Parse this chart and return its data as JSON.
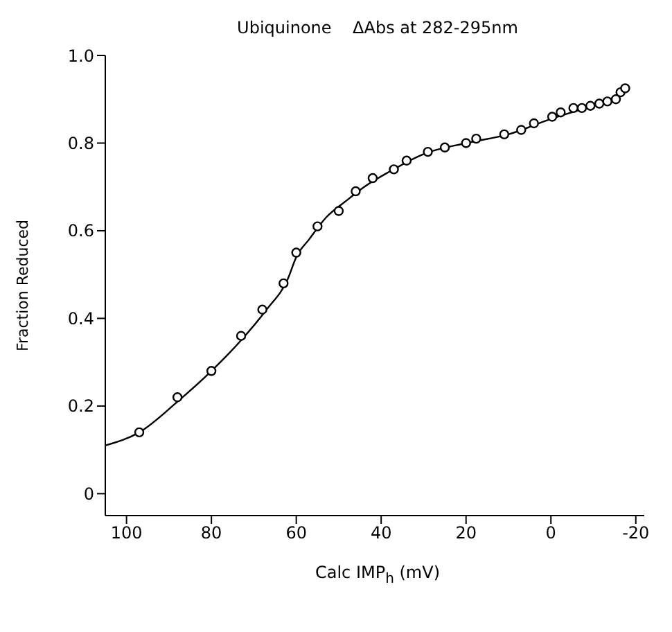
{
  "chart_data": {
    "type": "scatter",
    "title": "Ubiquinone    ΔAbs at 282-295nm",
    "xlabel": "Calc IMP$_{h}$ (mV)",
    "ylabel": "Fraction Reduced",
    "xlim": [
      105,
      -22
    ],
    "xticks": [
      100,
      80,
      60,
      40,
      20,
      0,
      -20
    ],
    "ylim": [
      -0.05,
      1.0
    ],
    "yticks": [
      0,
      {
        "value": 0.2,
        "label": "0.2"
      },
      {
        "value": 0.4,
        "label": "0.4"
      },
      {
        "value": 0.6,
        "label": "0.6"
      },
      {
        "value": 0.8,
        "label": "0.8"
      },
      {
        "value": 1.0,
        "label": "1.0"
      }
    ],
    "marker": "circle",
    "line_style": "solid",
    "series": [
      {
        "color": "#000000",
        "x": [
          97,
          88,
          80,
          73,
          68,
          63,
          60,
          55,
          50,
          46,
          42,
          37,
          34,
          29,
          25,
          20,
          17.6,
          11,
          7,
          4,
          -0.3,
          -2.3,
          -5.3,
          -7.3,
          -9.3,
          -11.4,
          -13.3,
          -15.3,
          -16.4,
          -17.5
        ],
        "values": [
          0.14,
          0.22,
          0.28,
          0.36,
          0.42,
          0.48,
          0.55,
          0.61,
          0.645,
          0.69,
          0.72,
          0.74,
          0.76,
          0.78,
          0.79,
          0.8,
          0.81,
          0.82,
          0.83,
          0.845,
          0.86,
          0.87,
          0.88,
          0.88,
          0.885,
          0.89,
          0.895,
          0.9,
          0.916,
          0.925
        ]
      },
      {
        "type": "line",
        "color": "#000000",
        "marker": "none",
        "x": [
          105,
          97,
          88,
          80,
          73,
          67,
          62,
          60,
          57,
          53,
          48,
          44,
          38,
          30,
          20,
          10,
          0,
          -10,
          -15,
          -17.5
        ],
        "values": [
          0.11,
          0.14,
          0.21,
          0.28,
          0.35,
          0.42,
          0.49,
          0.54,
          0.58,
          0.63,
          0.67,
          0.7,
          0.735,
          0.775,
          0.8,
          0.82,
          0.855,
          0.885,
          0.9,
          0.925
        ]
      }
    ]
  }
}
